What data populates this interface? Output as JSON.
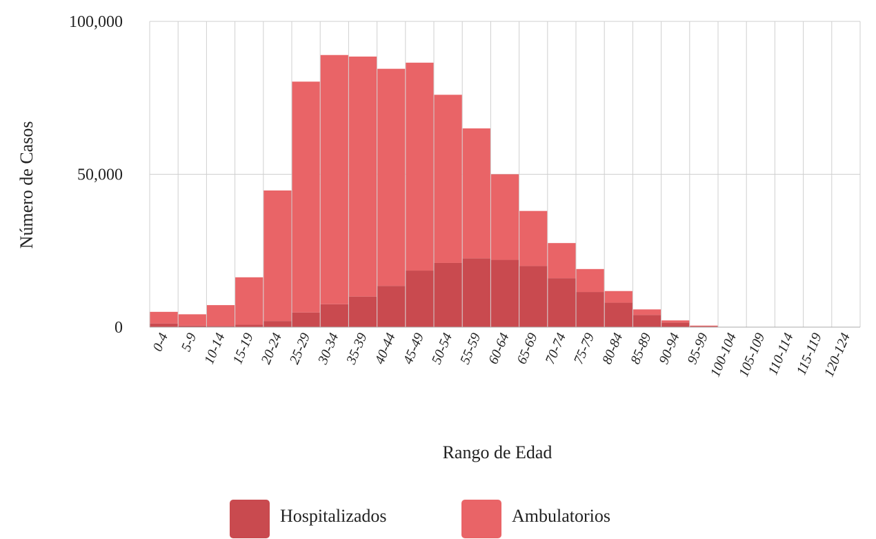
{
  "chart_data": {
    "type": "bar",
    "stacked": true,
    "title": "",
    "xlabel": "Rango de Edad",
    "ylabel": "Número de Casos",
    "ylim": [
      0,
      100000
    ],
    "yticks": [
      0,
      50000,
      100000
    ],
    "ytick_labels": [
      "0",
      "50,000",
      "100,000"
    ],
    "grid": true,
    "legend_position": "bottom",
    "categories": [
      "0-4",
      "5-9",
      "10-14",
      "15-19",
      "20-24",
      "25-29",
      "30-34",
      "35-39",
      "40-44",
      "45-49",
      "50-54",
      "55-59",
      "60-64",
      "65-69",
      "70-74",
      "75-79",
      "80-84",
      "85-89",
      "90-94",
      "95-99",
      "100-104",
      "105-109",
      "110-114",
      "115-119",
      "120-124"
    ],
    "series": [
      {
        "name": "Hospitalizados",
        "color": "#c94a4f",
        "values": [
          1200,
          500,
          400,
          800,
          2000,
          4800,
          7500,
          10000,
          13500,
          18500,
          21000,
          22500,
          22000,
          20000,
          16000,
          11500,
          8000,
          4000,
          1500,
          300,
          50,
          10,
          0,
          0,
          0
        ]
      },
      {
        "name": "Ambulatorios",
        "color": "#e96467",
        "values": [
          3800,
          3700,
          6800,
          15500,
          42700,
          75500,
          81500,
          78500,
          71000,
          68000,
          55000,
          42500,
          28000,
          18000,
          11500,
          7500,
          3800,
          1800,
          700,
          200,
          50,
          10,
          0,
          0,
          0
        ]
      }
    ]
  }
}
